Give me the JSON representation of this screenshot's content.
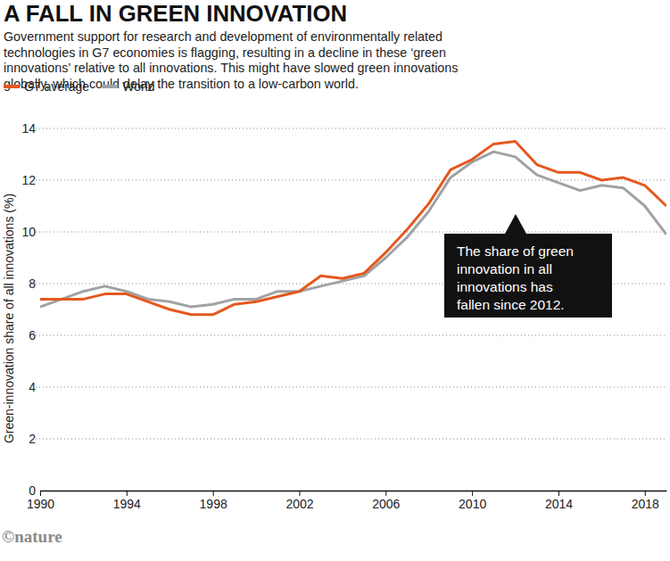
{
  "chart_data": {
    "type": "line",
    "title": "A FALL IN GREEN INNOVATION",
    "subtitle": [
      "Government support for research and development of environmentally related",
      "technologies in G7 economies is flagging, resulting in a decline in these ‘green",
      "innovations’ relative to all innovations. This might have slowed green innovations",
      "globally, which could delay the transition to a low-carbon world."
    ],
    "y_label": "Green-innovation share of all innovations (%)",
    "annotation": [
      "The share of green",
      "innovation in all",
      "innovations has",
      "fallen since 2012."
    ],
    "source": "©nature",
    "x": [
      1990,
      1991,
      1992,
      1993,
      1994,
      1995,
      1996,
      1997,
      1998,
      1999,
      2000,
      2001,
      2002,
      2003,
      2004,
      2005,
      2006,
      2007,
      2008,
      2009,
      2010,
      2011,
      2012,
      2013,
      2014,
      2015,
      2016,
      2017,
      2018,
      2019
    ],
    "series": [
      {
        "name": "G7 average",
        "color": "#e4581f",
        "values": [
          7.4,
          7.4,
          7.4,
          7.6,
          7.6,
          7.3,
          7.0,
          6.8,
          6.8,
          7.2,
          7.3,
          7.5,
          7.7,
          8.3,
          8.2,
          8.4,
          9.2,
          10.1,
          11.1,
          12.4,
          12.8,
          13.4,
          13.5,
          12.6,
          12.3,
          12.3,
          12.0,
          12.1,
          11.8,
          11.0
        ]
      },
      {
        "name": "World",
        "color": "#9fa2a6",
        "values": [
          7.1,
          7.4,
          7.7,
          7.9,
          7.7,
          7.4,
          7.3,
          7.1,
          7.2,
          7.4,
          7.4,
          7.7,
          7.7,
          7.9,
          8.1,
          8.3,
          9.0,
          9.8,
          10.8,
          12.1,
          12.7,
          13.1,
          12.9,
          12.2,
          11.9,
          11.6,
          11.8,
          11.7,
          11.0,
          9.9
        ]
      }
    ],
    "xlim": [
      1990,
      2019
    ],
    "xticks": [
      1990,
      1994,
      1998,
      2002,
      2006,
      2010,
      2014,
      2018
    ],
    "ylim": [
      0,
      14
    ],
    "yticks": [
      0,
      2,
      4,
      6,
      8,
      10,
      12,
      14
    ],
    "grid": true,
    "legend": "top-left"
  }
}
